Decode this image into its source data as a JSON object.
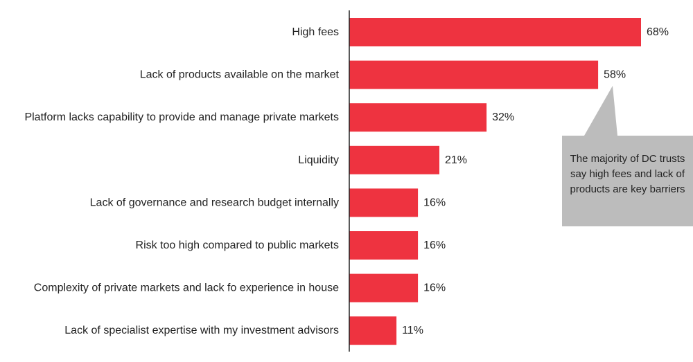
{
  "chart_data": {
    "type": "bar",
    "orientation": "horizontal",
    "categories": [
      "High fees",
      "Lack of products available on the market",
      "Platform lacks capability to provide and manage private markets",
      "Liquidity",
      "Lack of governance and research budget internally",
      "Risk too high compared to public markets",
      "Complexity of private markets and lack fo experience in house",
      "Lack of specialist expertise with my investment advisors"
    ],
    "values": [
      68,
      58,
      32,
      21,
      16,
      16,
      16,
      11
    ],
    "value_labels": [
      "68%",
      "58%",
      "32%",
      "21%",
      "16%",
      "16%",
      "16%",
      "11%"
    ],
    "unit": "%",
    "xlim": [
      0,
      100
    ],
    "grid": false,
    "title": "",
    "xlabel": "",
    "ylabel": "",
    "annotation": {
      "text": "The majority of DC trusts say high fees and lack of products are key barriers",
      "points_to": "Lack of products available on the market"
    }
  },
  "colors": {
    "bar": "#ee3340",
    "axis": "#222222",
    "callout": "#bcbcbc",
    "text": "#222222"
  }
}
